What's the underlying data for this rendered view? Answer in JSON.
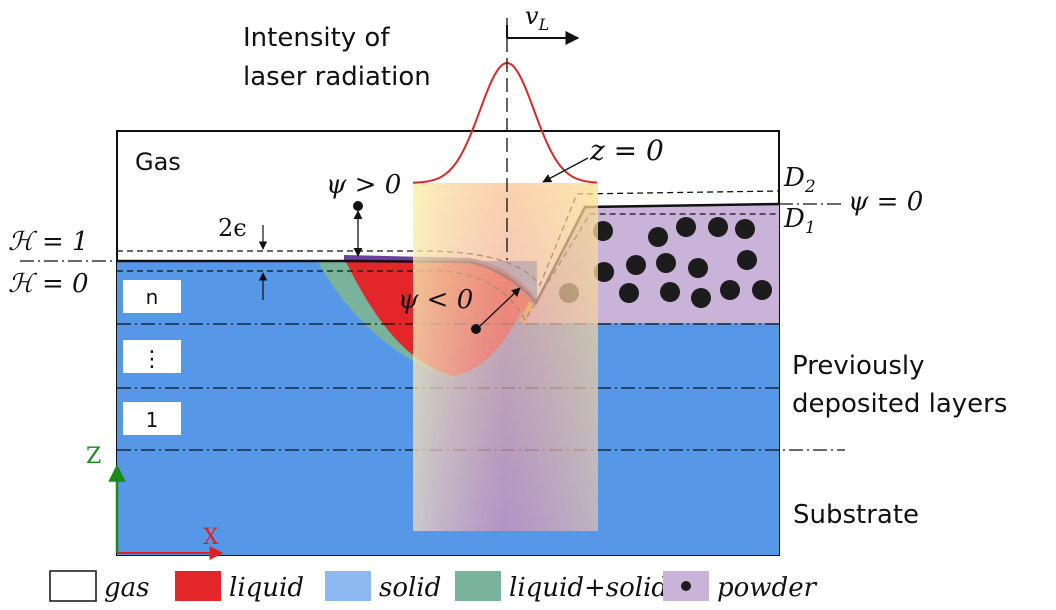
{
  "title_lines": [
    "Intensity of",
    "laser radiation"
  ],
  "velocity": {
    "symbol": "v",
    "subscript": "L"
  },
  "regions": {
    "gas": "Gas",
    "previous_layers": [
      "Previously",
      "deposited layers"
    ],
    "substrate": "Substrate"
  },
  "equations": {
    "z_zero": "z = 0",
    "psi_pos": "ψ > 0",
    "psi_neg": "ψ < 0",
    "psi_zero": "ψ = 0",
    "two_eps": "2ϵ",
    "h_one": "ℋ = 1",
    "h_zero": "ℋ = 0",
    "d2": "D",
    "d2_sub": "2",
    "d1": "D",
    "d1_sub": "1"
  },
  "layer_labels": [
    "n",
    "⋮",
    "1"
  ],
  "axes": {
    "z": "Z",
    "x": "X"
  },
  "legend": [
    {
      "label": "gas",
      "color": "#ffffff",
      "kind": "box"
    },
    {
      "label": "liquid",
      "color": "#e3262a",
      "kind": "box"
    },
    {
      "label": "solid",
      "color": "#8db8f0",
      "kind": "box"
    },
    {
      "label": "liquid+solid",
      "color": "#7ab39c",
      "kind": "box"
    },
    {
      "label": "powder",
      "color": "#c9b3d9",
      "kind": "dot"
    }
  ],
  "colors": {
    "substrate": "#5797e8",
    "powder_bg": "#c9b3d9",
    "liquid": "#e3262a",
    "mushy": "#7ab39c",
    "laser_beam": "#f2c84b",
    "gaussian": "#d42a2a",
    "axis_z": "#1a8a1a",
    "axis_x": "#e02020"
  }
}
